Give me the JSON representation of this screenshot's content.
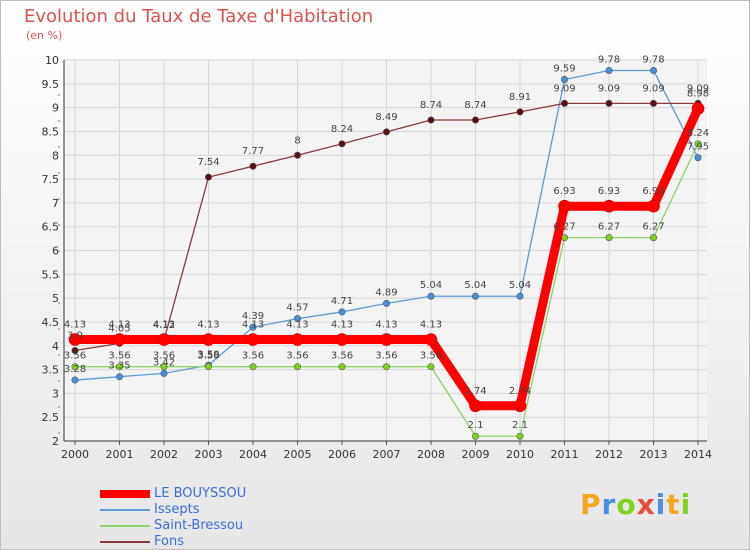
{
  "chart_data": {
    "type": "line",
    "title": "Evolution du Taux de Taxe d'Habitation",
    "subtitle": "(en %)",
    "categories": [
      "2000",
      "2001",
      "2002",
      "2003",
      "2004",
      "2005",
      "2006",
      "2007",
      "2008",
      "2009",
      "2010",
      "2011",
      "2012",
      "2013",
      "2014"
    ],
    "ylim": [
      2,
      10
    ],
    "yticks": [
      "2",
      "2.5",
      "3",
      "3.5",
      "4",
      "4.5",
      "5",
      "5.5",
      "6",
      "6.5",
      "7",
      "7.5",
      "8",
      "8.5",
      "9",
      "9.5",
      "10"
    ],
    "grid": true,
    "legend_position": "bottom-left",
    "series": [
      {
        "name": "LE BOUYSSOU",
        "color": "#ff0000",
        "values": [
          4.13,
          4.13,
          4.13,
          4.13,
          4.13,
          4.13,
          4.13,
          4.13,
          4.13,
          2.74,
          2.74,
          6.93,
          6.93,
          6.93,
          8.98
        ],
        "labels": [
          "4.13",
          "4.13",
          "4.13",
          "4.13",
          "4.13",
          "4.13",
          "4.13",
          "4.13",
          "4.13",
          "2.74",
          "2.74",
          "6.93",
          "6.93",
          "6.93",
          "8.98"
        ]
      },
      {
        "name": "Issepts",
        "color": "#5b9bd5",
        "values": [
          3.28,
          3.35,
          3.42,
          3.59,
          4.39,
          4.57,
          4.71,
          4.89,
          5.04,
          5.04,
          5.04,
          9.59,
          9.78,
          9.78,
          7.95
        ],
        "labels": [
          "3.28",
          "3.35",
          "3.42",
          "3.59",
          "4.39",
          "4.57",
          "4.71",
          "4.89",
          "5.04",
          "5.04",
          "5.04",
          "9.59",
          "9.78",
          "9.78",
          "7.95"
        ]
      },
      {
        "name": "Saint-Bressou",
        "color": "#8fd36b",
        "values": [
          3.56,
          3.56,
          3.56,
          3.56,
          3.56,
          3.56,
          3.56,
          3.56,
          3.56,
          2.1,
          2.1,
          6.27,
          6.27,
          6.27,
          8.24
        ],
        "labels": [
          "3.56",
          "3.56",
          "3.56",
          "3.56",
          "3.56",
          "3.56",
          "3.56",
          "3.56",
          "3.56",
          "2.1",
          "2.1",
          "6.27",
          "6.27",
          "6.27",
          "8.24"
        ]
      },
      {
        "name": "Fons",
        "color": "#8b3a3a",
        "values": [
          3.9,
          4.05,
          4.12,
          7.54,
          7.77,
          8,
          8.24,
          8.49,
          8.74,
          8.74,
          8.91,
          9.09,
          9.09,
          9.09,
          9.09
        ],
        "labels": [
          "3.9",
          "4.05",
          "4.12",
          "7.54",
          "7.77",
          "8",
          "8.24",
          "8.49",
          "8.74",
          "8.74",
          "8.91",
          "9.09",
          "9.09",
          "9.09",
          "9.09"
        ]
      }
    ]
  },
  "brand": {
    "letters": [
      "P",
      "r",
      "o",
      "x",
      "i",
      "t",
      "i"
    ],
    "colors": [
      "#f5a623",
      "#4a90e2",
      "#7ed321",
      "#e94e3c",
      "#4a90e2",
      "#f5a623",
      "#7ed321"
    ]
  }
}
